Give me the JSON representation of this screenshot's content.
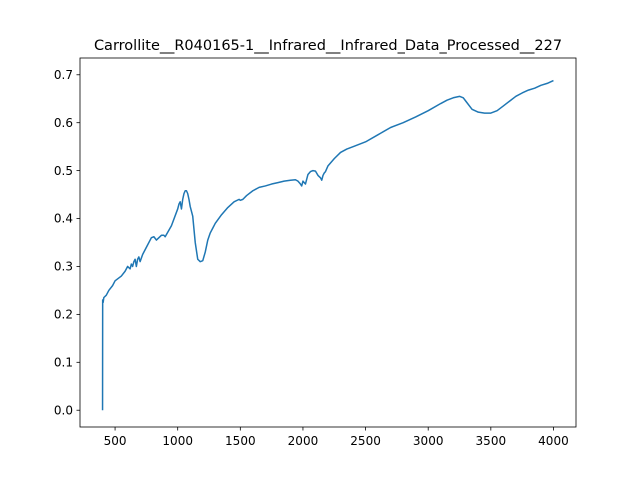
{
  "chart_data": {
    "type": "line",
    "title": "Carrollite__R040165-1__Infrared__Infrared_Data_Processed__227",
    "xlabel": "",
    "ylabel": "",
    "xlim": [
      220,
      4180
    ],
    "ylim": [
      -0.035,
      0.735
    ],
    "grid": false,
    "legend": "none",
    "x_ticks": [
      {
        "value": 500,
        "label": "500"
      },
      {
        "value": 1000,
        "label": "1000"
      },
      {
        "value": 1500,
        "label": "1500"
      },
      {
        "value": 2000,
        "label": "2000"
      },
      {
        "value": 2500,
        "label": "2500"
      },
      {
        "value": 3000,
        "label": "3000"
      },
      {
        "value": 3500,
        "label": "3500"
      },
      {
        "value": 4000,
        "label": "4000"
      }
    ],
    "y_ticks": [
      {
        "value": 0.0,
        "label": "0.0"
      },
      {
        "value": 0.1,
        "label": "0.1"
      },
      {
        "value": 0.2,
        "label": "0.2"
      },
      {
        "value": 0.3,
        "label": "0.3"
      },
      {
        "value": 0.4,
        "label": "0.4"
      },
      {
        "value": 0.5,
        "label": "0.5"
      },
      {
        "value": 0.6,
        "label": "0.6"
      },
      {
        "value": 0.7,
        "label": "0.7"
      }
    ],
    "series": [
      {
        "color": "#1f77b4",
        "x": [
          400,
          401,
          405,
          410,
          430,
          450,
          480,
          500,
          550,
          580,
          600,
          620,
          630,
          640,
          650,
          660,
          670,
          680,
          690,
          700,
          720,
          760,
          790,
          810,
          830,
          850,
          870,
          890,
          900,
          950,
          1000,
          1010,
          1020,
          1030,
          1040,
          1050,
          1060,
          1070,
          1080,
          1090,
          1100,
          1120,
          1140,
          1160,
          1180,
          1200,
          1220,
          1240,
          1260,
          1280,
          1300,
          1350,
          1400,
          1450,
          1490,
          1500,
          1520,
          1550,
          1600,
          1650,
          1700,
          1750,
          1800,
          1850,
          1900,
          1940,
          1960,
          1980,
          1990,
          2000,
          2010,
          2020,
          2030,
          2040,
          2060,
          2080,
          2100,
          2120,
          2140,
          2150,
          2160,
          2170,
          2180,
          2200,
          2250,
          2300,
          2350,
          2400,
          2500,
          2600,
          2700,
          2800,
          2900,
          3000,
          3100,
          3150,
          3200,
          3250,
          3280,
          3300,
          3350,
          3400,
          3450,
          3500,
          3550,
          3600,
          3650,
          3700,
          3750,
          3800,
          3850,
          3900,
          3950,
          4000
        ],
        "values": [
          0.0,
          0.23,
          0.225,
          0.235,
          0.24,
          0.25,
          0.26,
          0.27,
          0.28,
          0.29,
          0.3,
          0.295,
          0.305,
          0.3,
          0.31,
          0.315,
          0.3,
          0.315,
          0.32,
          0.31,
          0.325,
          0.345,
          0.36,
          0.362,
          0.355,
          0.36,
          0.365,
          0.365,
          0.362,
          0.385,
          0.42,
          0.43,
          0.435,
          0.42,
          0.44,
          0.452,
          0.458,
          0.458,
          0.452,
          0.44,
          0.425,
          0.405,
          0.35,
          0.315,
          0.31,
          0.312,
          0.33,
          0.355,
          0.37,
          0.38,
          0.39,
          0.408,
          0.423,
          0.435,
          0.44,
          0.438,
          0.44,
          0.448,
          0.458,
          0.465,
          0.468,
          0.472,
          0.475,
          0.478,
          0.48,
          0.481,
          0.478,
          0.472,
          0.468,
          0.478,
          0.475,
          0.472,
          0.482,
          0.492,
          0.498,
          0.5,
          0.499,
          0.49,
          0.485,
          0.48,
          0.49,
          0.495,
          0.498,
          0.51,
          0.525,
          0.538,
          0.545,
          0.55,
          0.56,
          0.575,
          0.59,
          0.6,
          0.612,
          0.625,
          0.64,
          0.647,
          0.652,
          0.655,
          0.652,
          0.645,
          0.628,
          0.622,
          0.62,
          0.62,
          0.625,
          0.635,
          0.645,
          0.655,
          0.662,
          0.668,
          0.672,
          0.678,
          0.682,
          0.688
        ]
      }
    ]
  }
}
